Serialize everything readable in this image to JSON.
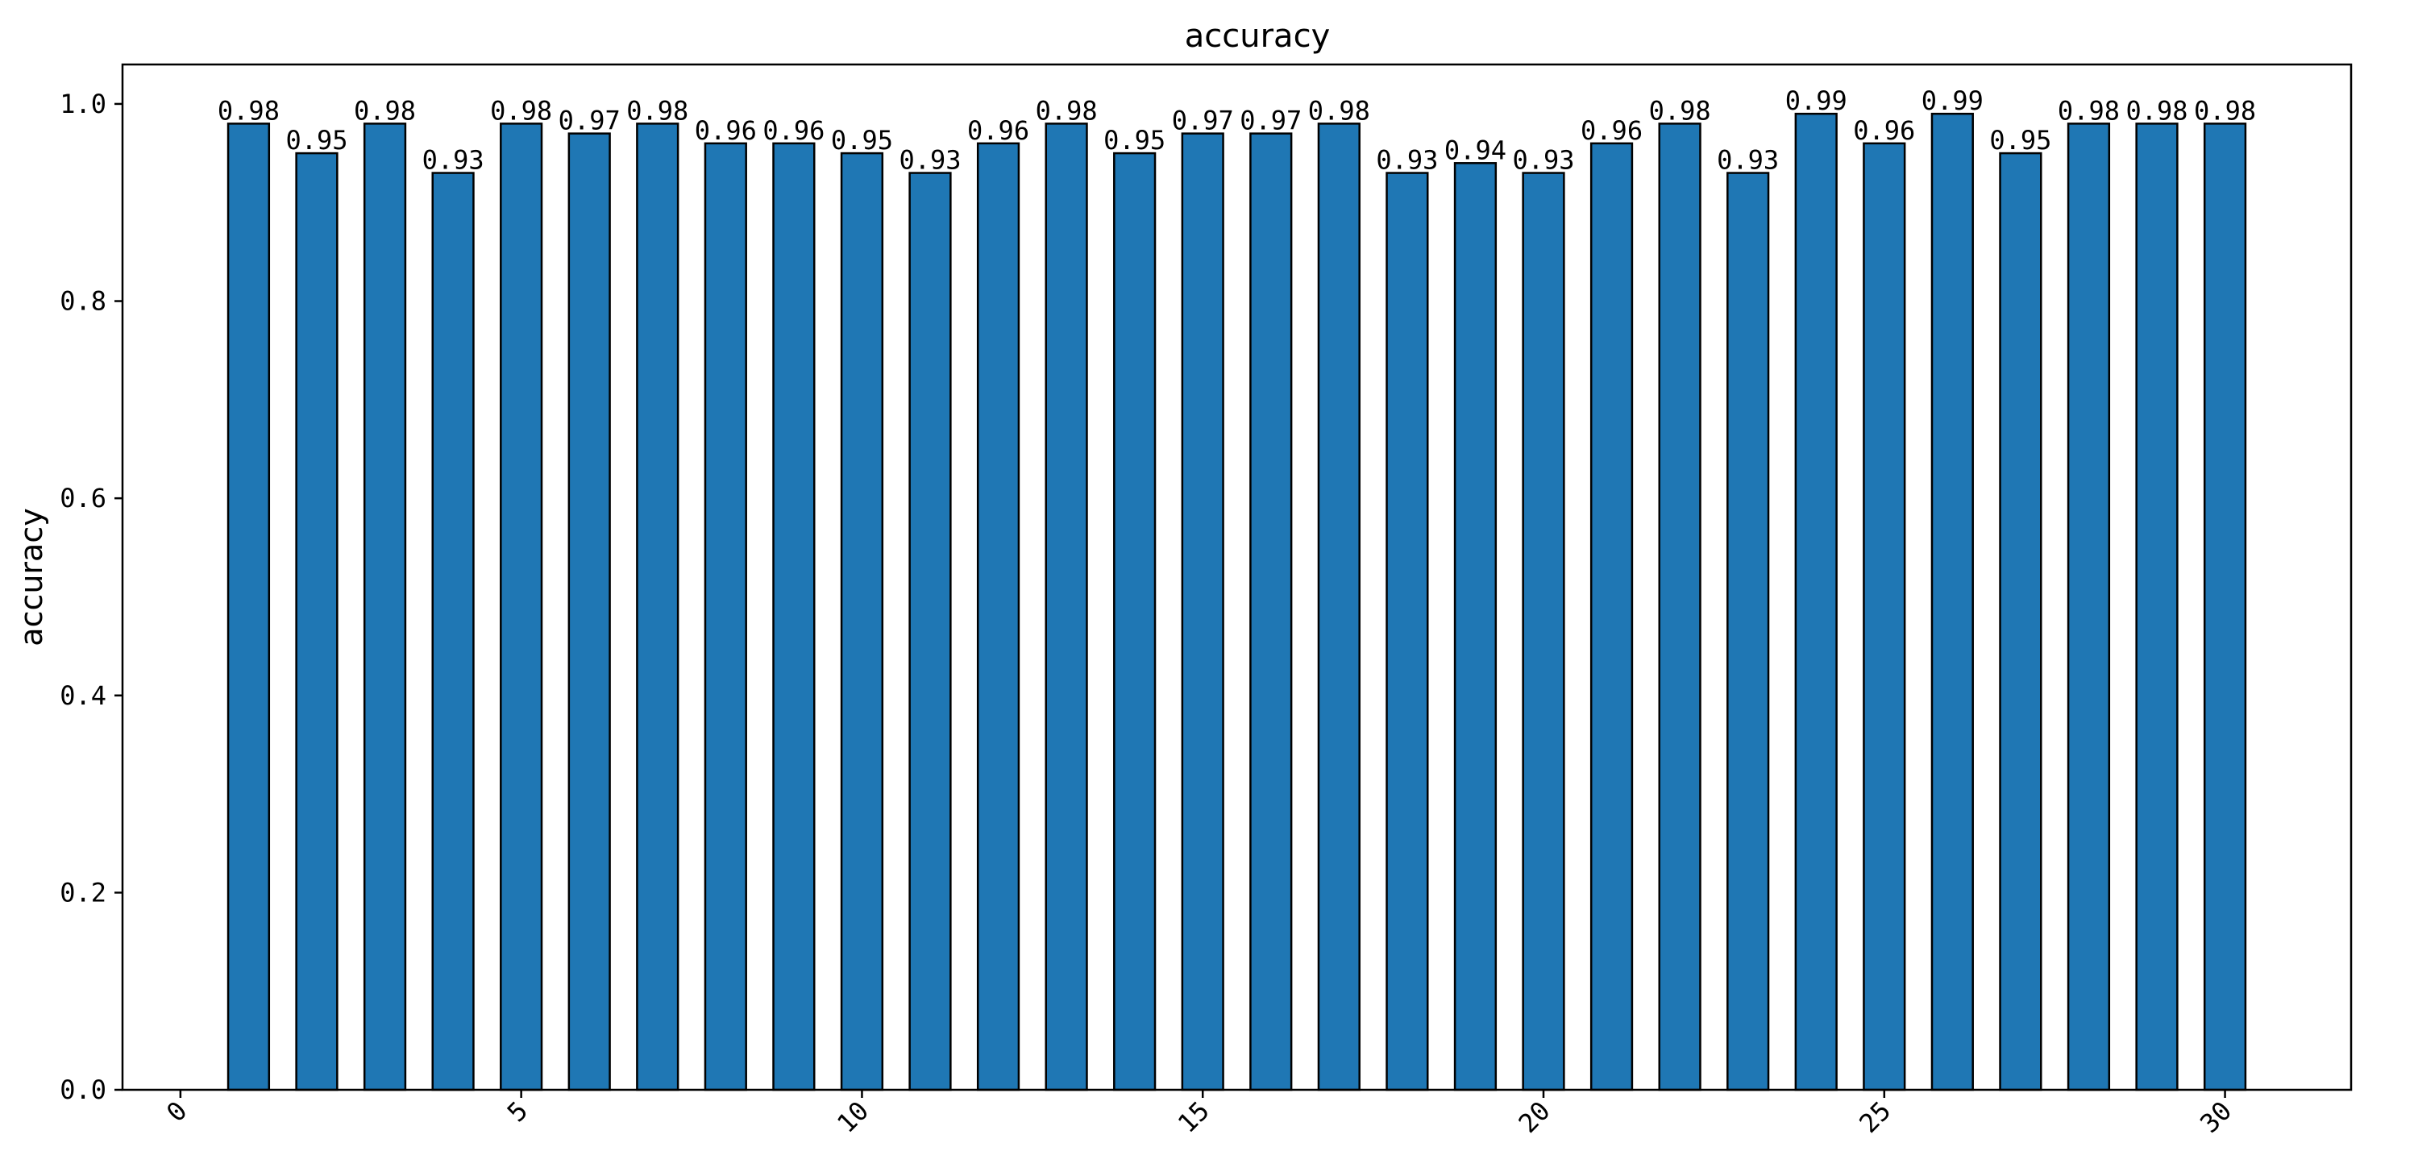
{
  "chart_data": {
    "type": "bar",
    "title": "accuracy",
    "xlabel": "",
    "ylabel": "accuracy",
    "x": [
      1,
      2,
      3,
      4,
      5,
      6,
      7,
      8,
      9,
      10,
      11,
      12,
      13,
      14,
      15,
      16,
      17,
      18,
      19,
      20,
      21,
      22,
      23,
      24,
      25,
      26,
      27,
      28,
      29,
      30
    ],
    "values": [
      0.98,
      0.95,
      0.98,
      0.93,
      0.98,
      0.97,
      0.98,
      0.96,
      0.96,
      0.95,
      0.93,
      0.96,
      0.98,
      0.95,
      0.97,
      0.97,
      0.98,
      0.93,
      0.94,
      0.93,
      0.96,
      0.98,
      0.93,
      0.99,
      0.96,
      0.99,
      0.95,
      0.98,
      0.98,
      0.98
    ],
    "data_labels": [
      "0.98",
      "0.95",
      "0.98",
      "0.93",
      "0.98",
      "0.97",
      "0.98",
      "0.96",
      "0.96",
      "0.95",
      "0.93",
      "0.96",
      "0.98",
      "0.95",
      "0.97",
      "0.97",
      "0.98",
      "0.93",
      "0.94",
      "0.93",
      "0.96",
      "0.98",
      "0.93",
      "0.99",
      "0.96",
      "0.99",
      "0.95",
      "0.98",
      "0.98",
      "0.98"
    ],
    "xlim": [
      -0.85,
      31.85
    ],
    "ylim": [
      0,
      1.04
    ],
    "xticks": [
      0,
      5,
      10,
      15,
      20,
      25,
      30
    ],
    "xtick_labels": [
      "0",
      "5",
      "10",
      "15",
      "20",
      "25",
      "30"
    ],
    "yticks": [
      0.0,
      0.2,
      0.4,
      0.6,
      0.8,
      1.0
    ],
    "ytick_labels": [
      "0.0",
      "0.2",
      "0.4",
      "0.6",
      "0.8",
      "1.0"
    ],
    "xtick_rotation": 45,
    "bar_color": "#1f77b4",
    "edge_color": "#000000",
    "grid": false,
    "legend": false
  }
}
